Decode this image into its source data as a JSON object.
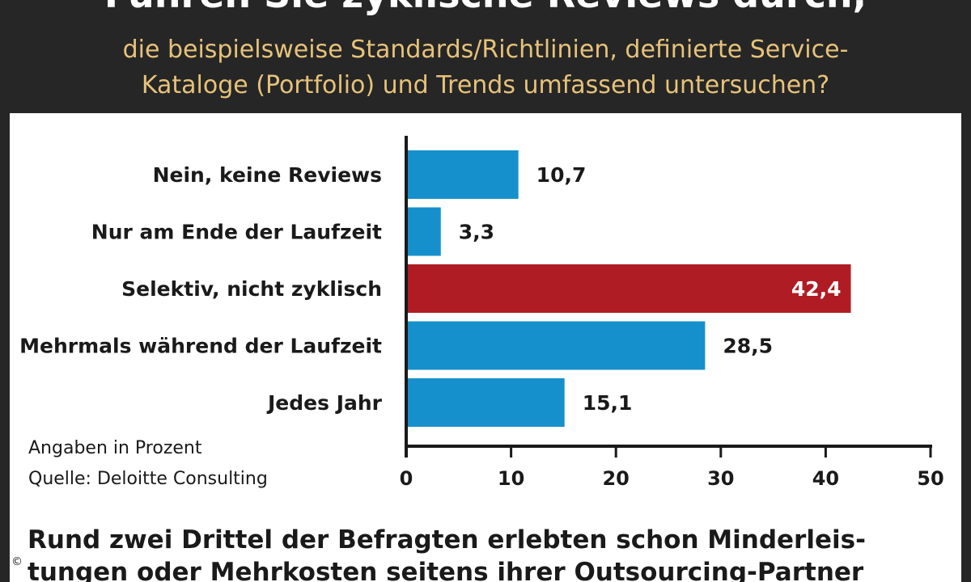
{
  "header": {
    "title": "Führen Sie zyklische Reviews durch,",
    "subtitle_line1": "die beispielsweise Standards/Richtlinien, definierte Service-",
    "subtitle_line2": "Kataloge (Portfolio) und Trends umfassend untersuchen?"
  },
  "chart_data": {
    "type": "bar",
    "orientation": "horizontal",
    "categories": [
      "Nein, keine Reviews",
      "Nur am Ende der Laufzeit",
      "Selektiv, nicht zyklisch",
      "Mehrmals während der Laufzeit",
      "Jedes Jahr"
    ],
    "values": [
      10.7,
      3.3,
      42.4,
      28.5,
      15.1
    ],
    "value_labels": [
      "10,7",
      "3,3",
      "42,4",
      "28,5",
      "15,1"
    ],
    "highlight_index": 2,
    "xlim": [
      0,
      50
    ],
    "xticks": [
      0,
      10,
      20,
      30,
      40,
      50
    ],
    "grid": false,
    "colors": {
      "bar": "#1690cc",
      "highlight": "#b01c24",
      "axis": "#1a1a1a"
    }
  },
  "notes": {
    "unit": "Angaben in Prozent",
    "source": "Quelle: Deloitte Consulting"
  },
  "footer": {
    "line1": "Rund zwei Drittel der Befragten erlebten schon Minderleis-",
    "line2": "tungen oder Mehrkosten seitens ihrer Outsourcing-Partner"
  },
  "copyright": "©"
}
